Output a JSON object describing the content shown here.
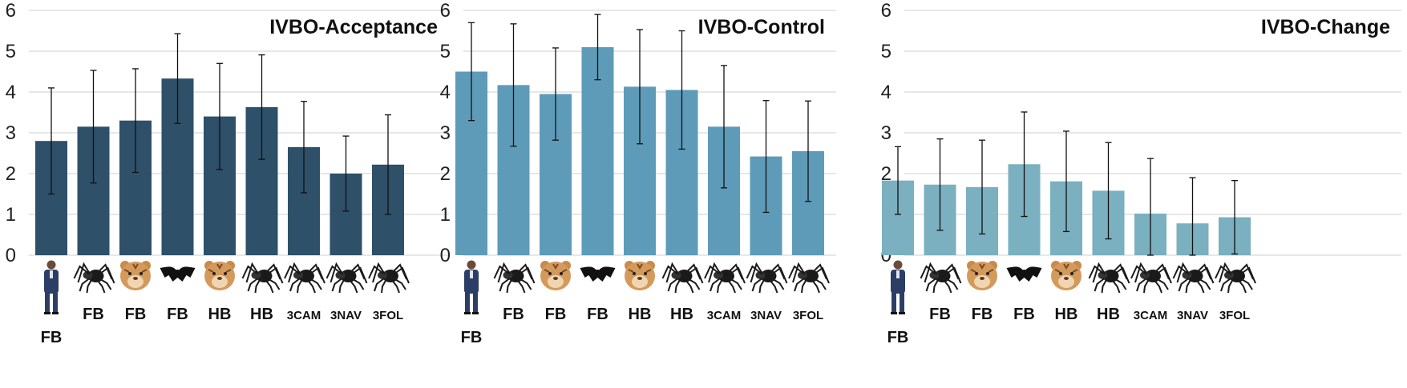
{
  "chart_data": [
    {
      "type": "bar",
      "title": "IVBO-Acceptance",
      "color": "#2e5068",
      "categories": [
        "FB",
        "FB",
        "FB",
        "FB",
        "HB",
        "HB",
        "3CAM",
        "3NAV",
        "3FOL"
      ],
      "icons": [
        "human-avatar-icon",
        "spider-icon",
        "tiger-icon",
        "bat-icon",
        "tiger-icon",
        "spider-icon",
        "spider-icon",
        "spider-icon",
        "spider-icon"
      ],
      "values": [
        2.8,
        3.15,
        3.3,
        4.33,
        3.4,
        3.63,
        2.65,
        2.0,
        2.22
      ],
      "error": [
        1.3,
        1.38,
        1.27,
        1.1,
        1.3,
        1.28,
        1.12,
        0.92,
        1.22
      ],
      "yticks": [
        "0",
        "1",
        "2",
        "3",
        "4",
        "5",
        "6"
      ],
      "ylim": [
        0,
        6
      ],
      "grid": true
    },
    {
      "type": "bar",
      "title": "IVBO-Control",
      "color": "#5e9bb8",
      "categories": [
        "FB",
        "FB",
        "FB",
        "FB",
        "HB",
        "HB",
        "3CAM",
        "3NAV",
        "3FOL"
      ],
      "icons": [
        "human-avatar-icon",
        "spider-icon",
        "tiger-icon",
        "bat-icon",
        "tiger-icon",
        "spider-icon",
        "spider-icon",
        "spider-icon",
        "spider-icon"
      ],
      "values": [
        4.5,
        4.17,
        3.95,
        5.1,
        4.13,
        4.05,
        3.15,
        2.42,
        2.55
      ],
      "error": [
        1.2,
        1.5,
        1.13,
        0.8,
        1.4,
        1.45,
        1.5,
        1.37,
        1.23
      ],
      "yticks": [
        "0",
        "1",
        "2",
        "3",
        "4",
        "5",
        "6"
      ],
      "ylim": [
        0,
        6
      ],
      "grid": true
    },
    {
      "type": "bar",
      "title": "IVBO-Change",
      "color": "#7ab0bf",
      "categories": [
        "FB",
        "FB",
        "FB",
        "FB",
        "HB",
        "HB",
        "3CAM",
        "3NAV",
        "3FOL"
      ],
      "icons": [
        "human-avatar-icon",
        "spider-icon",
        "tiger-icon",
        "bat-icon",
        "tiger-icon",
        "spider-icon",
        "spider-icon",
        "spider-icon",
        "spider-icon"
      ],
      "values": [
        1.83,
        1.73,
        1.67,
        2.23,
        1.81,
        1.58,
        1.02,
        0.78,
        0.93
      ],
      "error": [
        0.83,
        1.12,
        1.15,
        1.28,
        1.23,
        1.18,
        1.35,
        1.12,
        0.9
      ],
      "yticks": [
        "0",
        "1",
        "2",
        "3",
        "4",
        "5",
        "6"
      ],
      "ylim": [
        0,
        6
      ],
      "grid": true
    }
  ]
}
